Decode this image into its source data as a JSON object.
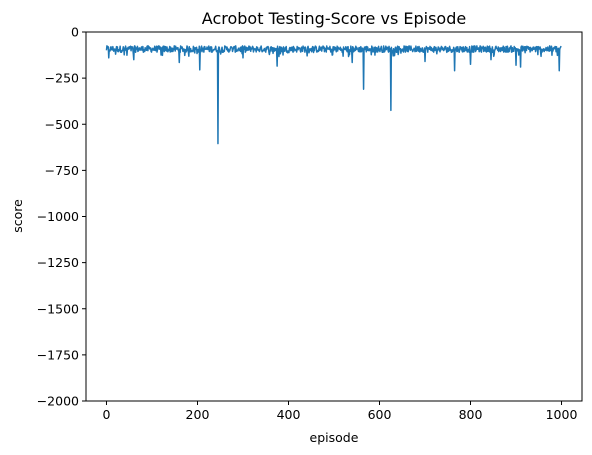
{
  "chart_data": {
    "type": "line",
    "title": "Acrobot Testing-Score vs Episode",
    "xlabel": "episode",
    "ylabel": "score",
    "xlim": [
      -45,
      1045
    ],
    "ylim": [
      -2000,
      0
    ],
    "x_ticks": [
      0,
      200,
      400,
      600,
      800,
      1000
    ],
    "x_tick_labels": [
      "0",
      "200",
      "400",
      "600",
      "800",
      "1000"
    ],
    "y_ticks": [
      0,
      -250,
      -500,
      -750,
      -1000,
      -1250,
      -1500,
      -1750,
      -2000
    ],
    "y_tick_labels": [
      "0",
      "−250",
      "−500",
      "−750",
      "−1000",
      "−1250",
      "−1500",
      "−1750",
      "−2000"
    ],
    "grid": false,
    "legend": "none",
    "series": [
      {
        "color": "#1f77b4",
        "x_start": 0,
        "x_step": 1,
        "count": 1000,
        "baseline_low": -110,
        "baseline_high": -75,
        "typical_value": -90,
        "spikes": [
          {
            "x": 5,
            "y": -140
          },
          {
            "x": 20,
            "y": -120
          },
          {
            "x": 60,
            "y": -150
          },
          {
            "x": 120,
            "y": -125
          },
          {
            "x": 160,
            "y": -165
          },
          {
            "x": 205,
            "y": -205
          },
          {
            "x": 245,
            "y": -605
          },
          {
            "x": 300,
            "y": -140
          },
          {
            "x": 375,
            "y": -185
          },
          {
            "x": 540,
            "y": -165
          },
          {
            "x": 565,
            "y": -310
          },
          {
            "x": 625,
            "y": -425
          },
          {
            "x": 700,
            "y": -160
          },
          {
            "x": 765,
            "y": -210
          },
          {
            "x": 800,
            "y": -175
          },
          {
            "x": 845,
            "y": -150
          },
          {
            "x": 900,
            "y": -180
          },
          {
            "x": 910,
            "y": -190
          },
          {
            "x": 995,
            "y": -210
          }
        ]
      }
    ]
  }
}
